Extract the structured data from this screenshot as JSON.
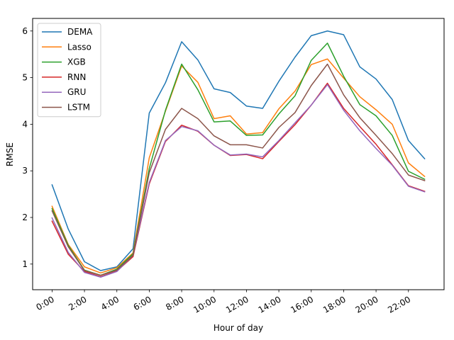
{
  "chart_data": {
    "type": "line",
    "title": "",
    "xlabel": "Hour of day",
    "ylabel": "RMSE",
    "x": [
      0,
      1,
      2,
      3,
      4,
      5,
      6,
      7,
      8,
      9,
      10,
      11,
      12,
      13,
      14,
      15,
      16,
      17,
      18,
      19,
      20,
      21,
      22,
      23
    ],
    "xticks": [
      0,
      2,
      4,
      6,
      8,
      10,
      12,
      14,
      16,
      18,
      20,
      22
    ],
    "xtick_labels": [
      "0:00",
      "2:00",
      "4:00",
      "6:00",
      "8:00",
      "10:00",
      "12:00",
      "14:00",
      "16:00",
      "18:00",
      "20:00",
      "22:00"
    ],
    "xlim": [
      -1.2,
      24.2
    ],
    "ylim": [
      0.45,
      6.27
    ],
    "yticks": [
      1,
      2,
      3,
      4,
      5,
      6
    ],
    "ytick_labels": [
      "1",
      "2",
      "3",
      "4",
      "5",
      "6"
    ],
    "grid": false,
    "legend_position": "upper-left",
    "series": [
      {
        "name": "DEMA",
        "color": "#1f77b4",
        "values": [
          2.7,
          1.75,
          1.05,
          0.86,
          0.94,
          1.33,
          4.24,
          4.89,
          5.77,
          5.38,
          4.76,
          4.68,
          4.39,
          4.34,
          4.92,
          5.44,
          5.9,
          6.0,
          5.92,
          5.23,
          4.97,
          4.53,
          3.65,
          3.26
        ]
      },
      {
        "name": "Lasso",
        "color": "#ff7f0e",
        "values": [
          2.24,
          1.42,
          0.94,
          0.81,
          0.92,
          1.24,
          3.28,
          4.28,
          5.25,
          4.9,
          4.12,
          4.18,
          3.79,
          3.82,
          4.33,
          4.71,
          5.28,
          5.4,
          4.99,
          4.59,
          4.31,
          4.0,
          3.17,
          2.88
        ]
      },
      {
        "name": "XGB",
        "color": "#2ca02c",
        "values": [
          2.19,
          1.4,
          0.87,
          0.76,
          0.89,
          1.22,
          3.05,
          4.3,
          5.29,
          4.74,
          4.05,
          4.07,
          3.76,
          3.77,
          4.22,
          4.61,
          5.37,
          5.74,
          5.03,
          4.42,
          4.18,
          3.76,
          2.99,
          2.82
        ]
      },
      {
        "name": "RNN",
        "color": "#d62728",
        "values": [
          1.92,
          1.21,
          0.84,
          0.73,
          0.85,
          1.16,
          2.72,
          3.63,
          3.98,
          3.85,
          3.55,
          3.33,
          3.35,
          3.26,
          3.63,
          3.99,
          4.41,
          4.88,
          4.34,
          3.95,
          3.57,
          3.13,
          2.68,
          2.56
        ]
      },
      {
        "name": "GRU",
        "color": "#9467bd",
        "values": [
          1.99,
          1.25,
          0.82,
          0.72,
          0.84,
          1.19,
          2.75,
          3.65,
          3.95,
          3.86,
          3.55,
          3.34,
          3.36,
          3.3,
          3.65,
          4.03,
          4.41,
          4.85,
          4.3,
          3.86,
          3.48,
          3.12,
          2.67,
          2.55
        ]
      },
      {
        "name": "LSTM",
        "color": "#8c564b",
        "values": [
          2.14,
          1.37,
          0.86,
          0.76,
          0.87,
          1.19,
          2.96,
          3.89,
          4.34,
          4.12,
          3.75,
          3.56,
          3.56,
          3.49,
          3.93,
          4.25,
          4.83,
          5.29,
          4.63,
          4.14,
          3.76,
          3.37,
          2.91,
          2.79
        ]
      }
    ]
  }
}
